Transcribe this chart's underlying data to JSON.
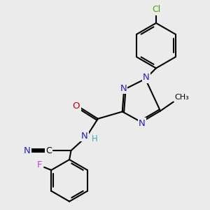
{
  "background_color": "#ebebeb",
  "bond_color": "#000000",
  "lw": 1.5,
  "colors": {
    "N": "#2222cc",
    "O": "#cc0000",
    "F": "#cc44cc",
    "Cl": "#44aa00",
    "C": "#000000",
    "H": "#44aaaa"
  },
  "xlim": [
    0,
    10
  ],
  "ylim": [
    0,
    10
  ]
}
